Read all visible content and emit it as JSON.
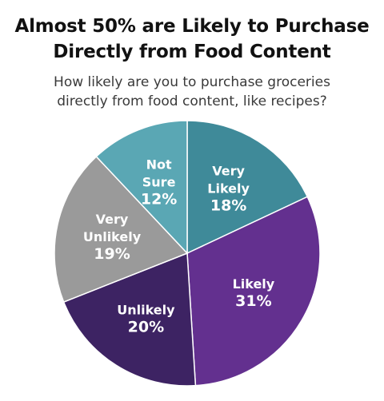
{
  "chart_data": {
    "type": "pie",
    "title_lines": [
      "Almost 50% are Likely to Purchase",
      "Directly from Food Content"
    ],
    "subtitle_lines": [
      "How likely are you to purchase groceries",
      "directly from food content, like recipes?"
    ],
    "slices": [
      {
        "label_lines": [
          "Very",
          "Likely"
        ],
        "value": 18,
        "value_label": "18%",
        "color": "#3f8a99"
      },
      {
        "label_lines": [
          "Likely"
        ],
        "value": 31,
        "value_label": "31%",
        "color": "#63308f"
      },
      {
        "label_lines": [
          "Unlikely"
        ],
        "value": 20,
        "value_label": "20%",
        "color": "#3d2363"
      },
      {
        "label_lines": [
          "Very",
          "Unlikely"
        ],
        "value": 19,
        "value_label": "19%",
        "color": "#9a9a9a"
      },
      {
        "label_lines": [
          "Not",
          "Sure"
        ],
        "value": 12,
        "value_label": "12%",
        "color": "#5aa7b4"
      }
    ],
    "start_angle": "12 o'clock",
    "direction": "clockwise",
    "legend": "none"
  }
}
